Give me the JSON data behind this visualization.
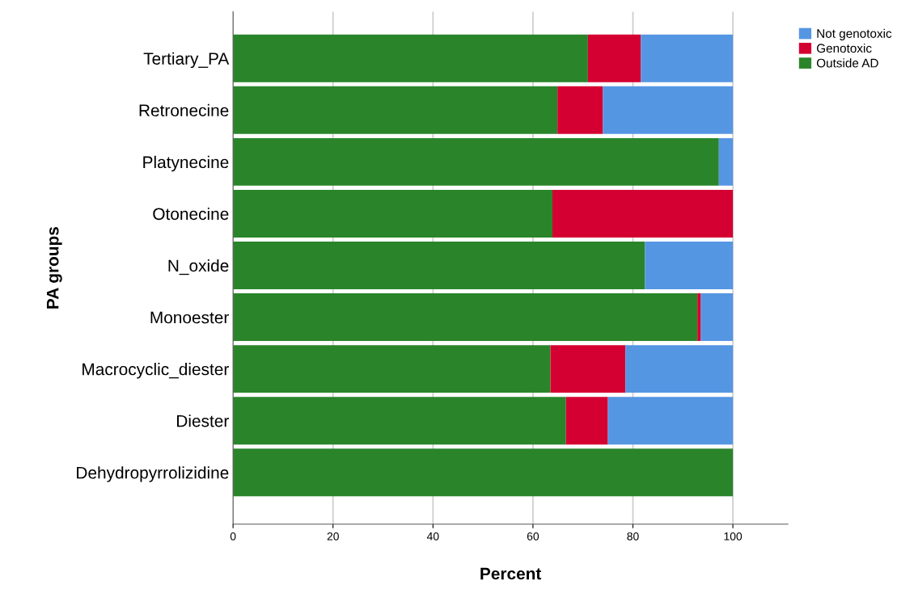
{
  "chart_data": {
    "type": "bar",
    "orientation": "horizontal",
    "stacked": true,
    "xlabel": "Percent",
    "ylabel": "PA groups",
    "categories": [
      "Tertiary_PA",
      "Retronecine",
      "Platynecine",
      "Otonecine",
      "N_oxide",
      "Monoester",
      "Macrocyclic_diester",
      "Diester",
      "Dehydropyrrolizidine"
    ],
    "series": [
      {
        "name": "Outside AD",
        "color": "#2a852a",
        "values": [
          71.0,
          64.9,
          97.2,
          63.9,
          82.4,
          92.9,
          63.5,
          66.6,
          100
        ]
      },
      {
        "name": "Genotoxic",
        "color": "#d50032",
        "values": [
          10.6,
          9.1,
          0,
          36.1,
          0,
          0.7,
          15.0,
          8.4,
          0
        ]
      },
      {
        "name": "Not genotoxic",
        "color": "#5596e3",
        "values": [
          18.4,
          26.0,
          2.8,
          0,
          17.6,
          6.4,
          21.5,
          25.0,
          0
        ]
      }
    ],
    "xlim": [
      0,
      111
    ],
    "xticks": [
      0,
      20,
      40,
      60,
      80,
      100
    ],
    "grid": "x",
    "legend": "top right"
  }
}
